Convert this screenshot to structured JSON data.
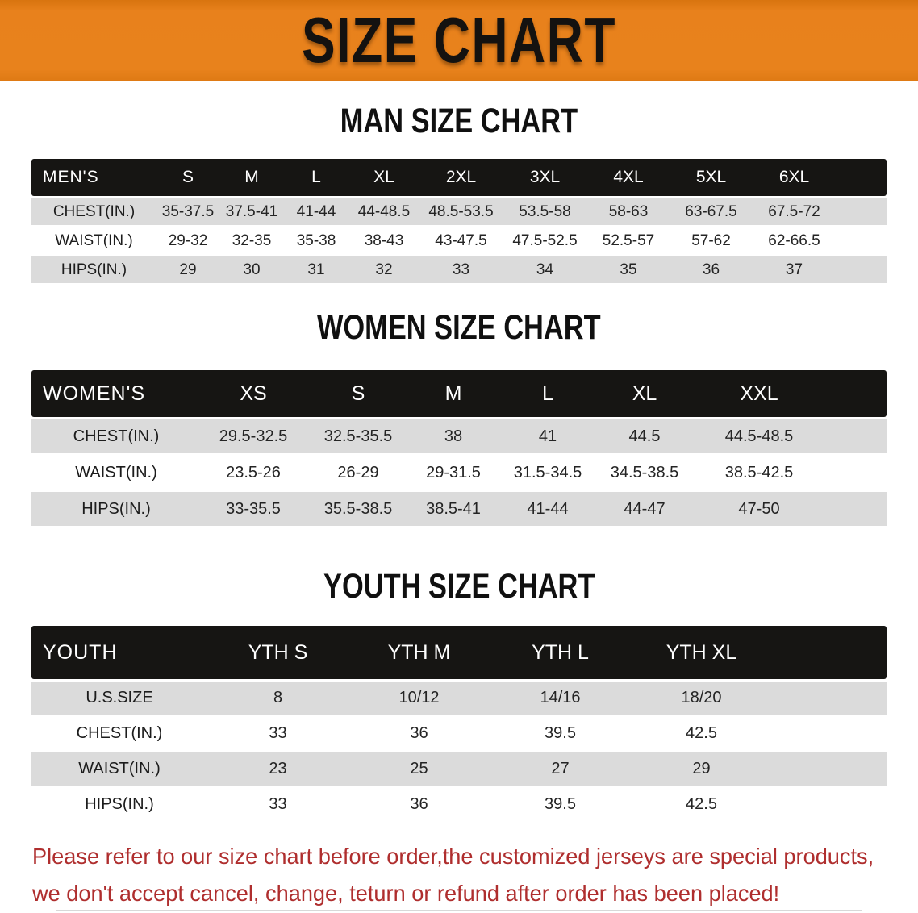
{
  "banner": {
    "title": "SIZE CHART",
    "bg_color": "#E8811C",
    "text_color": "#141210"
  },
  "sections": [
    {
      "title": "MAN SIZE CHART",
      "header_label": "MEN'S",
      "sizes": [
        "S",
        "M",
        "L",
        "XL",
        "2XL",
        "3XL",
        "4XL",
        "5XL",
        "6XL"
      ],
      "rows": [
        {
          "label": "CHEST(IN.)",
          "values": [
            "35-37.5",
            "37.5-41",
            "41-44",
            "44-48.5",
            "48.5-53.5",
            "53.5-58",
            "58-63",
            "63-67.5",
            "67.5-72"
          ]
        },
        {
          "label": "WAIST(IN.)",
          "values": [
            "29-32",
            "32-35",
            "35-38",
            "38-43",
            "43-47.5",
            "47.5-52.5",
            "52.5-57",
            "57-62",
            "62-66.5"
          ]
        },
        {
          "label": "HIPS(IN.)",
          "values": [
            "29",
            "30",
            "31",
            "32",
            "33",
            "34",
            "35",
            "36",
            "37"
          ]
        }
      ]
    },
    {
      "title": "WOMEN SIZE CHART",
      "header_label": "WOMEN'S",
      "sizes": [
        "XS",
        "S",
        "M",
        "L",
        "XL",
        "XXL"
      ],
      "rows": [
        {
          "label": "CHEST(IN.)",
          "values": [
            "29.5-32.5",
            "32.5-35.5",
            "38",
            "41",
            "44.5",
            "44.5-48.5"
          ]
        },
        {
          "label": "WAIST(IN.)",
          "values": [
            "23.5-26",
            "26-29",
            "29-31.5",
            "31.5-34.5",
            "34.5-38.5",
            "38.5-42.5"
          ]
        },
        {
          "label": "HIPS(IN.)",
          "values": [
            "33-35.5",
            "35.5-38.5",
            "38.5-41",
            "41-44",
            "44-47",
            "47-50"
          ]
        }
      ]
    },
    {
      "title": "YOUTH SIZE CHART",
      "header_label": "YOUTH",
      "sizes": [
        "YTH S",
        "YTH M",
        "YTH L",
        "YTH XL"
      ],
      "rows": [
        {
          "label": "U.S.SIZE",
          "values": [
            "8",
            "10/12",
            "14/16",
            "18/20"
          ]
        },
        {
          "label": "CHEST(IN.)",
          "values": [
            "33",
            "36",
            "39.5",
            "42.5"
          ]
        },
        {
          "label": "WAIST(IN.)",
          "values": [
            "23",
            "25",
            "27",
            "29"
          ]
        },
        {
          "label": "HIPS(IN.)",
          "values": [
            "33",
            "36",
            "39.5",
            "42.5"
          ]
        }
      ]
    }
  ],
  "footer": {
    "line1": "Please refer to our size chart before order,the customized jerseys are special products,",
    "line2": "we don't accept cancel, change, teturn or refund after order has been placed!",
    "text_color": "#AF2E2E"
  }
}
